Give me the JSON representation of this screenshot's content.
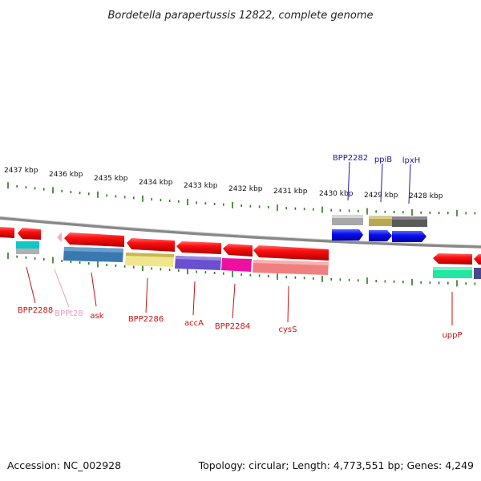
{
  "title": "Bordetella parapertussis 12822, complete genome",
  "footer": {
    "accession": "Accession: NC_002928",
    "summary": "Topology: circular; Length: 4,773,551 bp; Genes: 4,249"
  },
  "colors": {
    "backbone": "#888888",
    "tick": "#2a7a1a",
    "red_label": "#cc1111",
    "blue_label": "#1a1aa0",
    "pink_label": "#f09ac0"
  },
  "kbp_labels": [
    "2437 kbp",
    "2436 kbp",
    "2435 kbp",
    "2434 kbp",
    "2433 kbp",
    "2432 kbp",
    "2431 kbp",
    "2430 kbp",
    "2429 kbp",
    "2428 kbp"
  ],
  "gene_labels": {
    "BPP2288": "BPP2288",
    "BPPt28": "BPPt28",
    "ask": "ask",
    "BPP2286": "BPP2286",
    "accA": "accA",
    "BPP2284": "BPP2284",
    "cysS": "cysS",
    "uppP": "uppP",
    "BPP2282": "BPP2282",
    "ppiB": "ppiB",
    "lpxH": "lpxH"
  }
}
